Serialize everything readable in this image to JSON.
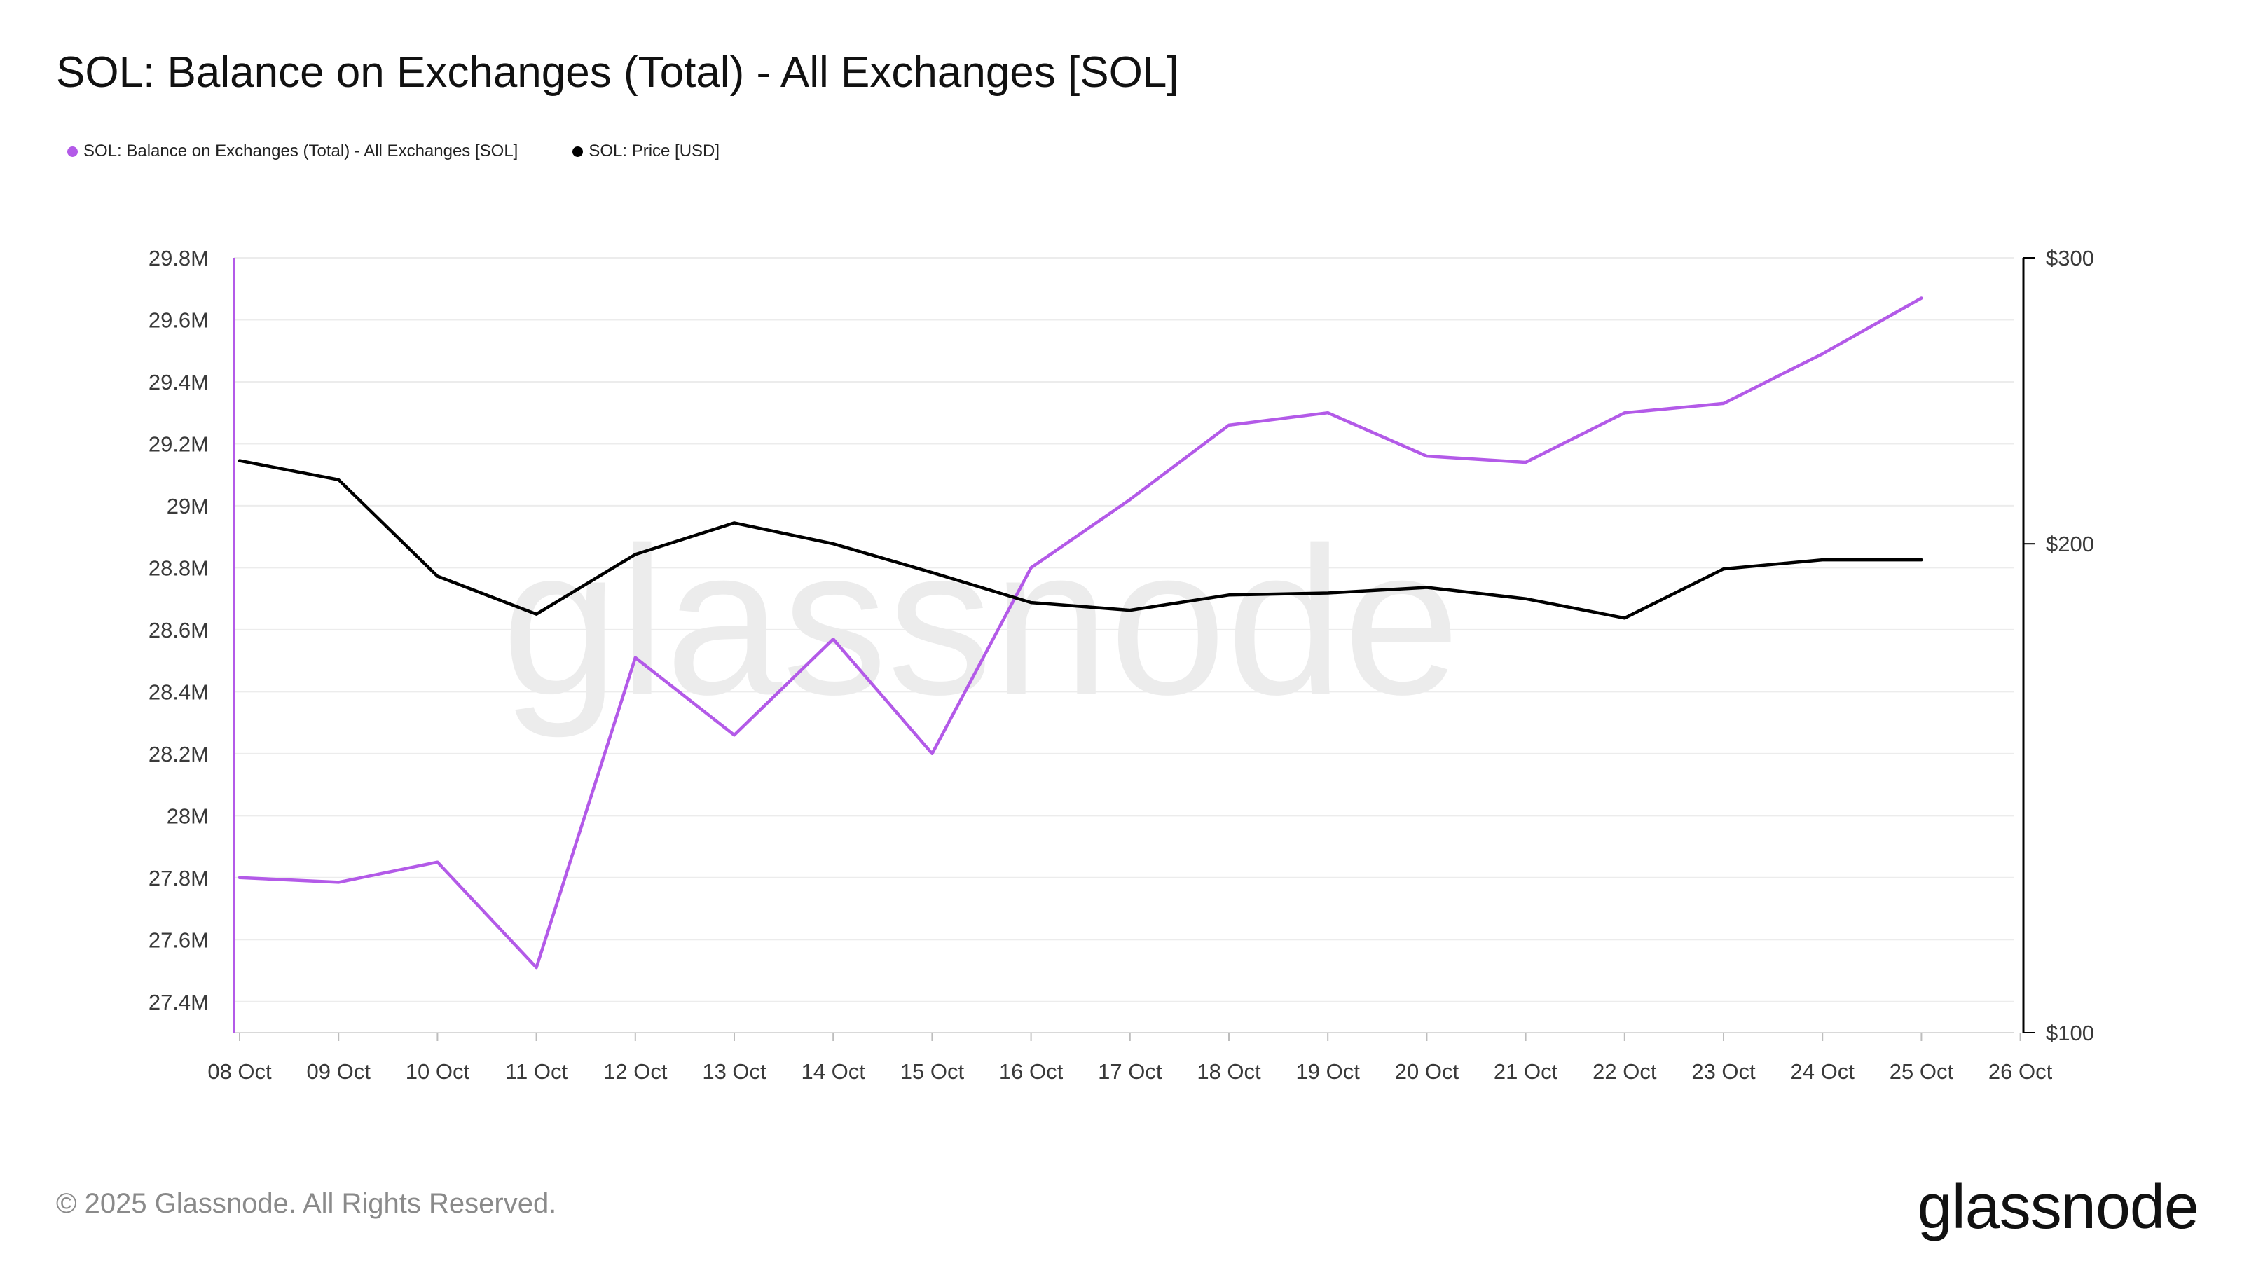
{
  "title": "SOL: Balance on Exchanges (Total) - All Exchanges [SOL]",
  "legend": [
    {
      "label": "SOL: Balance on Exchanges (Total) - All Exchanges [SOL]",
      "color": "#b35ae8"
    },
    {
      "label": "SOL: Price [USD]",
      "color": "#000000"
    }
  ],
  "watermark": "glassnode",
  "footer": "© 2025 Glassnode. All Rights Reserved.",
  "logo": "glassnode",
  "colors": {
    "balance": "#b35ae8",
    "price": "#000000",
    "grid": "#ececec",
    "axis": "#d9d9d9"
  },
  "chart_data": {
    "type": "line",
    "title": "SOL: Balance on Exchanges (Total) - All Exchanges [SOL]",
    "x": [
      "08 Oct",
      "09 Oct",
      "10 Oct",
      "11 Oct",
      "12 Oct",
      "13 Oct",
      "14 Oct",
      "15 Oct",
      "16 Oct",
      "17 Oct",
      "18 Oct",
      "19 Oct",
      "20 Oct",
      "21 Oct",
      "22 Oct",
      "23 Oct",
      "24 Oct",
      "25 Oct"
    ],
    "x_tick_labels": [
      "08 Oct",
      "09 Oct",
      "10 Oct",
      "11 Oct",
      "12 Oct",
      "13 Oct",
      "14 Oct",
      "15 Oct",
      "16 Oct",
      "17 Oct",
      "18 Oct",
      "19 Oct",
      "20 Oct",
      "21 Oct",
      "22 Oct",
      "23 Oct",
      "24 Oct",
      "25 Oct",
      "26 Oct"
    ],
    "left_axis": {
      "ylim": [
        27.3,
        29.8
      ],
      "ticks": [
        29.8,
        29.6,
        29.4,
        29.2,
        29.0,
        28.8,
        28.6,
        28.4,
        28.2,
        28.0,
        27.8,
        27.6,
        27.4
      ],
      "tick_labels": [
        "29.8M",
        "29.6M",
        "29.4M",
        "29.2M",
        "29M",
        "28.8M",
        "28.6M",
        "28.4M",
        "28.2M",
        "28M",
        "27.8M",
        "27.6M",
        "27.4M"
      ]
    },
    "right_axis": {
      "ylim": [
        100,
        300
      ],
      "scale": "log",
      "ticks": [
        300,
        200,
        100
      ],
      "tick_labels": [
        "$300",
        "$200",
        "$100"
      ]
    },
    "series": [
      {
        "name": "SOL: Balance on Exchanges (Total) - All Exchanges [SOL]",
        "axis": "left",
        "color": "#b35ae8",
        "values": [
          27.8,
          27.785,
          27.85,
          27.51,
          28.51,
          28.26,
          28.57,
          28.2,
          28.8,
          29.02,
          29.26,
          29.3,
          29.16,
          29.14,
          29.3,
          29.33,
          29.49,
          29.67
        ]
      },
      {
        "name": "SOL: Price [USD]",
        "axis": "right",
        "color": "#000000",
        "values": [
          225,
          219,
          191,
          181,
          197,
          206,
          200,
          192,
          184,
          182,
          186,
          186.5,
          188,
          185,
          180,
          193,
          195.5,
          195.5
        ]
      }
    ],
    "grid": true,
    "legend_position": "top-left"
  }
}
